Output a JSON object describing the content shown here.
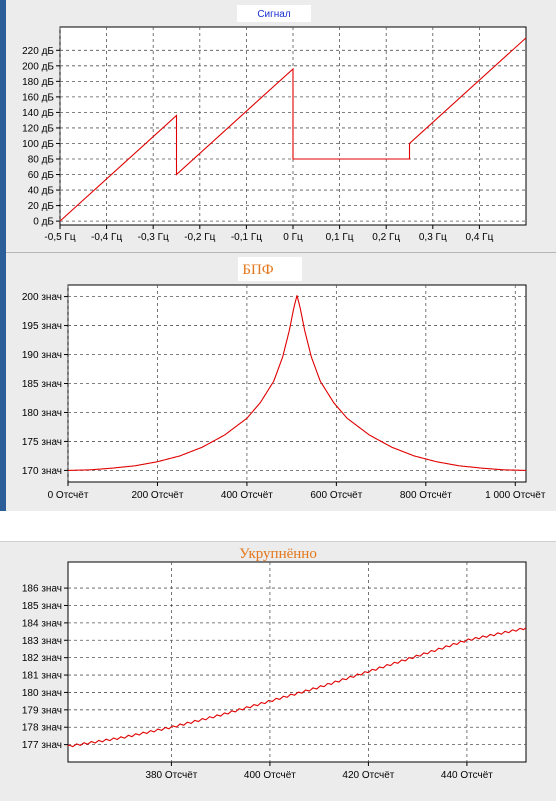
{
  "chart_data": [
    {
      "type": "line",
      "title": "Сигнал",
      "xlim": [
        -0.5,
        0.5
      ],
      "ylim": [
        -5,
        250
      ],
      "x_ticks": [
        -0.5,
        -0.4,
        -0.3,
        -0.2,
        -0.1,
        0,
        0.1,
        0.2,
        0.3,
        0.4
      ],
      "x_tick_labels": [
        "-0,5 Гц",
        "-0,4 Гц",
        "-0,3 Гц",
        "-0,2 Гц",
        "-0,1 Гц",
        "0 Гц",
        "0,1 Гц",
        "0,2 Гц",
        "0,3 Гц",
        "0,4 Гц"
      ],
      "y_ticks": [
        0,
        20,
        40,
        60,
        80,
        100,
        120,
        140,
        160,
        180,
        200,
        220
      ],
      "y_tick_labels": [
        "0 дБ",
        "20 дБ",
        "40 дБ",
        "60 дБ",
        "80 дБ",
        "100 дБ",
        "120 дБ",
        "140 дБ",
        "160 дБ",
        "180 дБ",
        "200 дБ",
        "220 дБ"
      ],
      "grid": true,
      "series": [
        {
          "color": "#e00000",
          "x": [
            -0.5,
            -0.25,
            -0.25,
            0,
            0,
            0.25,
            0.25,
            0.5
          ],
          "y": [
            0,
            136,
            60,
            196,
            80,
            80,
            100,
            236
          ]
        }
      ]
    },
    {
      "type": "line",
      "title": "БПФ",
      "xlim": [
        0,
        1024
      ],
      "ylim": [
        168,
        202
      ],
      "x_ticks": [
        0,
        200,
        400,
        600,
        800,
        1000
      ],
      "x_tick_labels": [
        "0 Отсчёт",
        "200 Отсчёт",
        "400 Отсчёт",
        "600 Отсчёт",
        "800 Отсчёт",
        "1 000 Отсчёт"
      ],
      "y_ticks": [
        170,
        175,
        180,
        185,
        190,
        195,
        200
      ],
      "y_tick_labels": [
        "170 знач",
        "175 знач",
        "180 знач",
        "185 знач",
        "190 знач",
        "195 знач",
        "200 знач"
      ],
      "grid": true,
      "series": [
        {
          "color": "#e00000",
          "x": [
            0,
            50,
            100,
            150,
            200,
            250,
            300,
            350,
            400,
            430,
            460,
            480,
            495,
            505,
            512,
            519,
            529,
            544,
            564,
            594,
            624,
            674,
            724,
            774,
            824,
            874,
            924,
            974,
            1024
          ],
          "y": [
            170,
            170.1,
            170.4,
            170.8,
            171.5,
            172.5,
            174,
            176.1,
            179,
            181.7,
            185.4,
            189.6,
            194.2,
            198.1,
            200.2,
            198.1,
            194.2,
            189.6,
            185.4,
            181.7,
            179,
            176.1,
            174,
            172.5,
            171.5,
            170.8,
            170.4,
            170.1,
            170
          ]
        }
      ]
    },
    {
      "type": "line",
      "title": "Укрупнённо",
      "xlim": [
        359,
        452
      ],
      "ylim": [
        176,
        187.5
      ],
      "x_ticks": [
        380,
        400,
        420,
        440
      ],
      "x_tick_labels": [
        "380 Отсчёт",
        "400 Отсчёт",
        "420 Отсчёт",
        "440 Отсчёт"
      ],
      "y_ticks": [
        177,
        178,
        179,
        180,
        181,
        182,
        183,
        184,
        185,
        186
      ],
      "y_tick_labels": [
        "177 знач",
        "178 знач",
        "179 знач",
        "180 знач",
        "181 знач",
        "182 знач",
        "183 знач",
        "184 знач",
        "185 знач",
        "186 знач"
      ],
      "grid": true,
      "series": [
        {
          "color": "#e00000",
          "x": [
            359,
            370,
            380,
            390,
            400,
            410,
            420,
            430,
            440,
            452
          ],
          "y": [
            176.9,
            177.4,
            178.0,
            178.7,
            179.5,
            180.3,
            181.2,
            182.1,
            183.0,
            183.7
          ],
          "ripple": 0.12
        }
      ]
    }
  ]
}
